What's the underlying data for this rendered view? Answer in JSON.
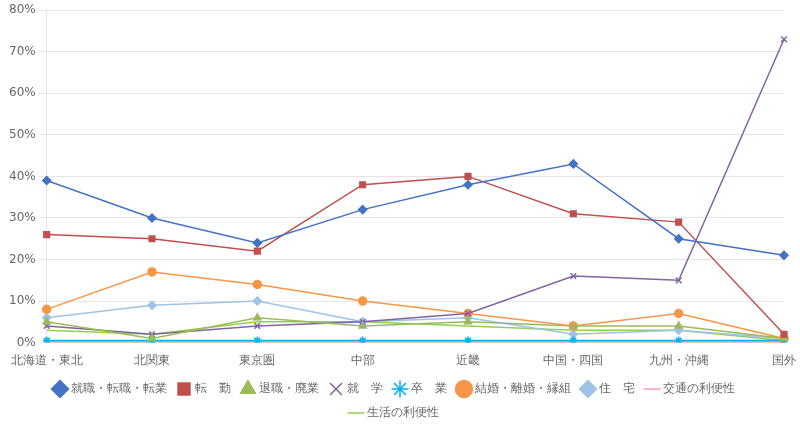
{
  "chart_data": {
    "type": "line",
    "categories": [
      "北海道・東北",
      "北関東",
      "東京圏",
      "中部",
      "近畿",
      "中国・四国",
      "九州・沖縄",
      "国外"
    ],
    "series": [
      {
        "name": "就職・転職・転業",
        "color": "#4472C4",
        "marker": "diamond",
        "values": [
          39,
          30,
          24,
          32,
          38,
          43,
          25,
          21
        ]
      },
      {
        "name": "転　勤",
        "color": "#C0504D",
        "marker": "square",
        "values": [
          26,
          25,
          22,
          38,
          40,
          31,
          29,
          2
        ]
      },
      {
        "name": "退職・廃業",
        "color": "#9BBB59",
        "marker": "triangle",
        "values": [
          5,
          1,
          6,
          4,
          5,
          4,
          4,
          1
        ]
      },
      {
        "name": "就　学",
        "color": "#8064A2",
        "marker": "x",
        "values": [
          4,
          2,
          4,
          5,
          7,
          16,
          15,
          73
        ]
      },
      {
        "name": "卒　業",
        "color": "#00B0F0",
        "marker": "star",
        "values": [
          0.5,
          0.5,
          0.5,
          0.5,
          0.5,
          0.5,
          0.5,
          0.5
        ]
      },
      {
        "name": "結婚・離婚・縁組",
        "color": "#F79646",
        "marker": "circle",
        "values": [
          8,
          17,
          14,
          10,
          7,
          4,
          7,
          1
        ]
      },
      {
        "name": "住　宅",
        "color": "#9DC3E6",
        "marker": "diamond",
        "values": [
          6,
          9,
          10,
          5,
          6,
          2,
          3,
          1
        ]
      },
      {
        "name": "交通の利便性",
        "color": "#FF99CC",
        "marker": "none",
        "values": [
          0.2,
          0.2,
          0.2,
          0.2,
          0.2,
          0.2,
          0.2,
          0.2
        ]
      },
      {
        "name": "生活の利便性",
        "color": "#92D050",
        "marker": "none",
        "values": [
          3,
          2,
          5,
          5,
          4,
          3,
          3,
          0.5
        ]
      }
    ],
    "ylim": [
      0,
      80
    ],
    "yticks": [
      {
        "value": 0,
        "label": "0%"
      },
      {
        "value": 10,
        "label": "10%"
      },
      {
        "value": 20,
        "label": "20%"
      },
      {
        "value": 30,
        "label": "30%"
      },
      {
        "value": 40,
        "label": "40%"
      },
      {
        "value": 50,
        "label": "50%"
      },
      {
        "value": 60,
        "label": "60%"
      },
      {
        "value": 70,
        "label": "70%"
      },
      {
        "value": 80,
        "label": "80%"
      }
    ],
    "grid": true,
    "legend": "bottom"
  }
}
